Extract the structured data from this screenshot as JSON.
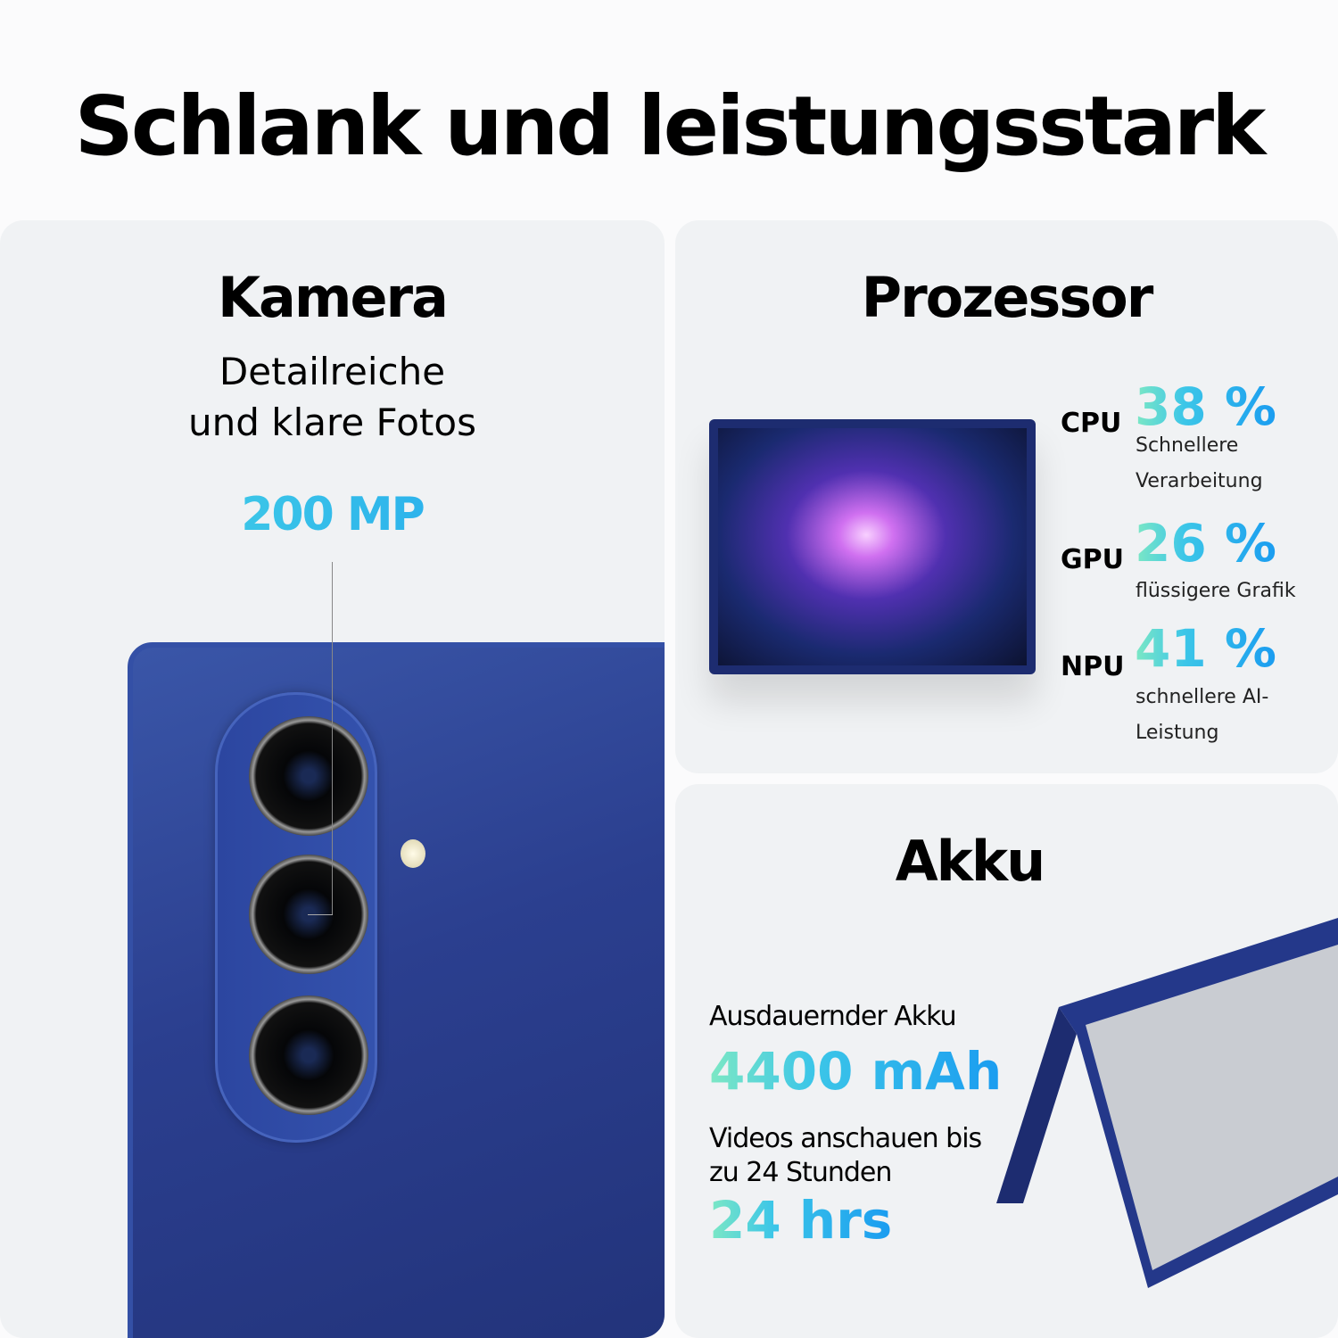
{
  "headline": "Schlank und leistungsstark",
  "camera": {
    "title": "Kamera",
    "subtitle_line1": "Detailreiche",
    "subtitle_line2": "und klare Fotos",
    "highlight": "200 MP"
  },
  "processor": {
    "title": "Prozessor",
    "items": [
      {
        "label": "CPU",
        "value": "38 %",
        "desc_line1": "Schnellere",
        "desc_line2": "Verarbeitung"
      },
      {
        "label": "GPU",
        "value": "26 %",
        "desc_line1": "flüssigere Grafik",
        "desc_line2": ""
      },
      {
        "label": "NPU",
        "value": "41 %",
        "desc_line1": "schnellere AI-",
        "desc_line2": "Leistung"
      }
    ]
  },
  "battery": {
    "title": "Akku",
    "capacity_label": "Ausdauernder Akku",
    "capacity_value": "4400 mAh",
    "video_line1": "Videos anschauen bis",
    "video_line2": "zu 24 Stunden",
    "video_value": "24 hrs"
  },
  "colors": {
    "phone_blue": "#2b3f8f",
    "gradient_start": "#7de8c4",
    "gradient_end": "#1a9cf0",
    "panel": "#f0f2f4"
  }
}
